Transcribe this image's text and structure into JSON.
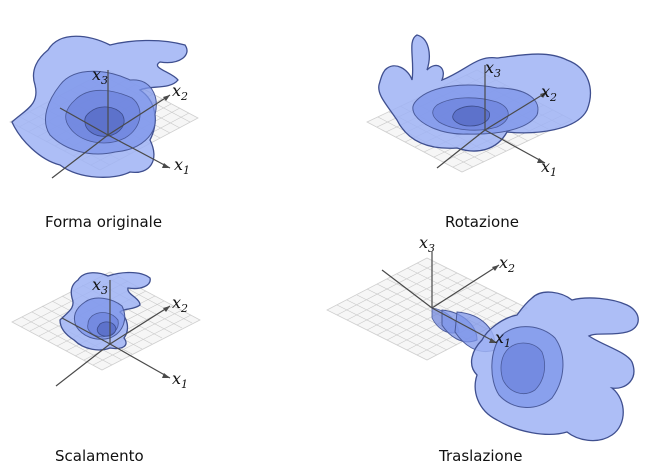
{
  "panels": [
    {
      "caption": "Forma originale",
      "axes": {
        "x1": "x",
        "x2": "x",
        "x3": "x",
        "s1": "1",
        "s2": "2",
        "s3": "3"
      }
    },
    {
      "caption": "Rotazione",
      "axes": {
        "x1": "x",
        "x2": "x",
        "x3": "x",
        "s1": "1",
        "s2": "2",
        "s3": "3"
      }
    },
    {
      "caption": "Scalamento",
      "axes": {
        "x1": "x",
        "x2": "x",
        "x3": "x",
        "s1": "1",
        "s2": "2",
        "s3": "3"
      }
    },
    {
      "caption": "Traslazione",
      "axes": {
        "x1": "x",
        "x2": "x",
        "x3": "x",
        "s1": "1",
        "s2": "2",
        "s3": "3"
      }
    }
  ],
  "colors": {
    "shape_fill": "#9fb3f5",
    "shape_stroke": "#3f4f8f",
    "grid": "#c9c9c9"
  }
}
